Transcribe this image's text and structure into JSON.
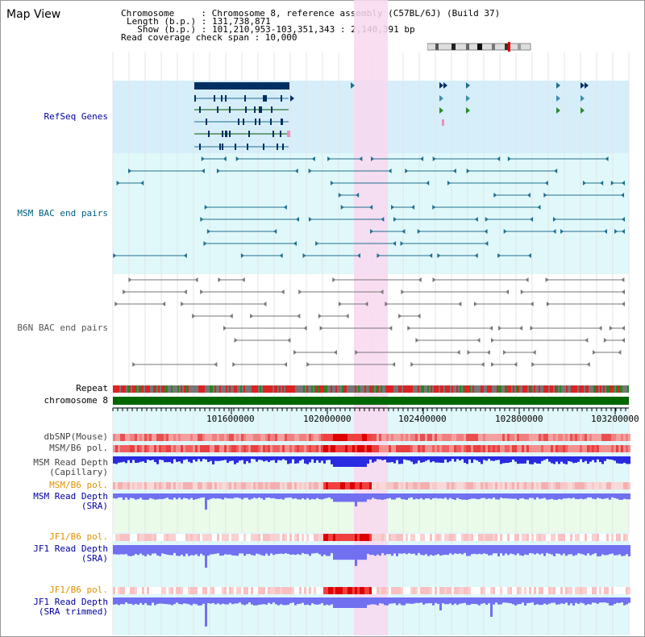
{
  "header": {
    "title": "Map View",
    "info_lines": [
      "Chromosome     : Chromosome 8, reference assembly (C57BL/6J) (Build 37)",
      "Length (b.p.) : 131,738,871",
      "  Show (b.p.) : 101,210,953-103,351,343 : 2,140,391 bp",
      "Read coverage check span : 10,000"
    ]
  },
  "tracks": {
    "refseq": "RefSeq Genes",
    "msm_bac": "MSM BAC end pairs",
    "b6n_bac": "B6N BAC end pairs",
    "repeat": "Repeat",
    "chromosome": "chromosome 8",
    "dbsnp": "dbSNP(Mouse)",
    "msm_b6_pol": "MSM/B6 pol.",
    "msm_depth_cap_1": "MSM Read Depth",
    "msm_depth_cap_2": "(Capillary)",
    "msm_b6_pol_sra": "MSM/B6 pol.",
    "msm_depth_sra_1": "MSM Read Depth",
    "msm_depth_sra_2": "(SRA)",
    "jf1_b6_pol": "JF1/B6 pol.",
    "jf1_depth_sra_1": "JF1 Read Depth",
    "jf1_depth_sra_2": "(SRA)",
    "jf1_b6_pol_trim": "JF1/B6 pol.",
    "jf1_depth_trim_1": "JF1 Read Depth",
    "jf1_depth_trim_2": "(SRA trimmed)"
  },
  "axis": {
    "ticks": [
      "101600000",
      "102000000",
      "102400000",
      "102800000",
      "103200000"
    ]
  },
  "colors": {
    "refseq_bg": "#d6eefa",
    "msm_bg": "#e0f8fa",
    "highlight": "#f8d8f0",
    "gene_dark": "#002f63",
    "msm_line": "#1f6f8f",
    "b6n_line": "#777777",
    "chrom_green": "#006600",
    "depth_blue": "#2a2ae0",
    "sra_blue": "#7070f0",
    "label_blue": "#0000a0",
    "label_orange": "#e09000",
    "label_teal": "#006080"
  }
}
